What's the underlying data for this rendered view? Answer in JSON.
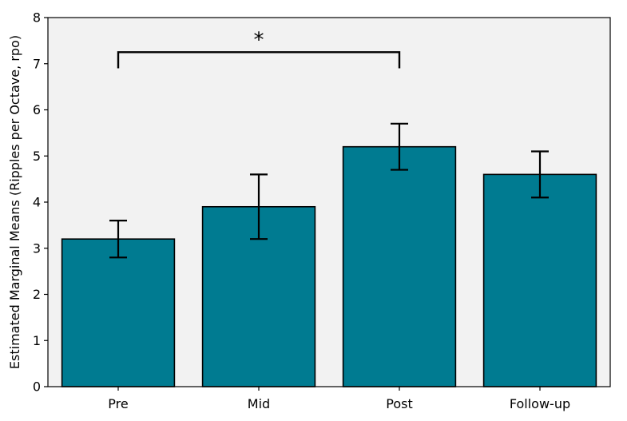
{
  "chart_data": {
    "type": "bar",
    "title": "",
    "xlabel": "",
    "ylabel": "Estimated Marginal Means (Ripples per Octave, rpo)",
    "categories": [
      "Pre",
      "Mid",
      "Post",
      "Follow-up"
    ],
    "values": [
      3.2,
      3.9,
      5.2,
      4.6
    ],
    "errors_lower": [
      2.8,
      3.2,
      4.7,
      4.1
    ],
    "errors_upper": [
      3.6,
      4.6,
      5.7,
      5.1
    ],
    "ylim": [
      0,
      8
    ],
    "yticks": [
      0,
      1,
      2,
      3,
      4,
      5,
      6,
      7,
      8
    ],
    "grid": false,
    "significance": [
      {
        "from": "Pre",
        "to": "Post",
        "label": "*",
        "bracket_top": 7.25,
        "bracket_bottom": 6.9
      }
    ],
    "colors": {
      "bar_fill": "#007b91",
      "bar_edge": "#000000",
      "plot_background": "#f2f2f2",
      "error_bar": "#000000"
    }
  }
}
